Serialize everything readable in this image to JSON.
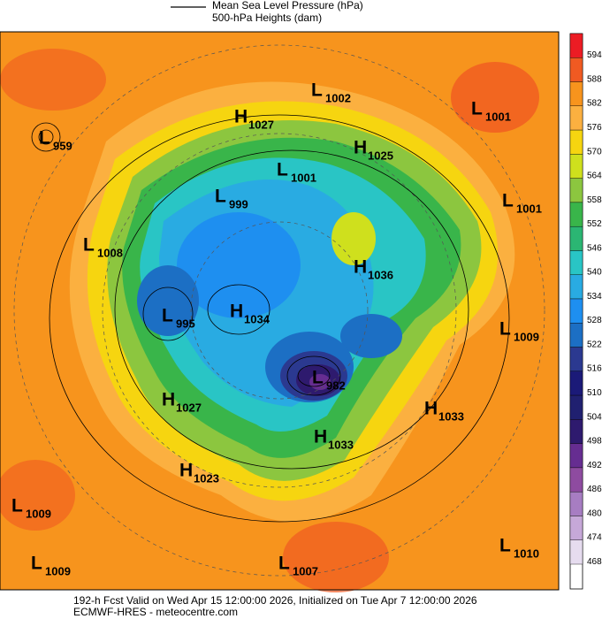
{
  "header": {
    "legend": [
      "Mean Sea Level Pressure (hPa)",
      "500-hPa Heights (dam)"
    ]
  },
  "colorbar": {
    "labels": [
      "594",
      "588",
      "582",
      "576",
      "570",
      "564",
      "558",
      "552",
      "546",
      "540",
      "534",
      "528",
      "522",
      "516",
      "510",
      "504",
      "498",
      "492",
      "486",
      "480",
      "474",
      "468"
    ],
    "colors": [
      "#ec1c24",
      "#f05a22",
      "#f7941d",
      "#fbb040",
      "#f6d510",
      "#cfe01d",
      "#8cc63f",
      "#39b54a",
      "#2bb673",
      "#29c5c5",
      "#29abe2",
      "#1e8ff0",
      "#1c6fc4",
      "#2b3990",
      "#1b1a78",
      "#202070",
      "#2e1a6e",
      "#662d91",
      "#8e4ba0",
      "#a77dc2",
      "#c6a8d8",
      "#e6dcef"
    ]
  },
  "centers": [
    {
      "type": "L",
      "value": "1002"
    },
    {
      "type": "H",
      "value": "1027"
    },
    {
      "type": "L",
      "value": "1001"
    },
    {
      "type": "L",
      "value": "959"
    },
    {
      "type": "H",
      "value": "1025"
    },
    {
      "type": "L",
      "value": "1001"
    },
    {
      "type": "L",
      "value": "999"
    },
    {
      "type": "L",
      "value": "1001"
    },
    {
      "type": "L",
      "value": "1008"
    },
    {
      "type": "H",
      "value": "1036"
    },
    {
      "type": "H",
      "value": "1034"
    },
    {
      "type": "L",
      "value": "995"
    },
    {
      "type": "L",
      "value": "1009"
    },
    {
      "type": "L",
      "value": "982"
    },
    {
      "type": "H",
      "value": "1027"
    },
    {
      "type": "H",
      "value": "1033"
    },
    {
      "type": "H",
      "value": "1033"
    },
    {
      "type": "H",
      "value": "1023"
    },
    {
      "type": "L",
      "value": "1009"
    },
    {
      "type": "L",
      "value": "1009"
    },
    {
      "type": "L",
      "value": "1007"
    },
    {
      "type": "L",
      "value": "1010"
    }
  ],
  "footer": [
    "192-h Fcst Valid on Wed Apr 15 12:00:00 2026, Initialized on Tue Apr  7 12:00:00 2026",
    "ECMWF-HRES  - meteocentre.com"
  ]
}
